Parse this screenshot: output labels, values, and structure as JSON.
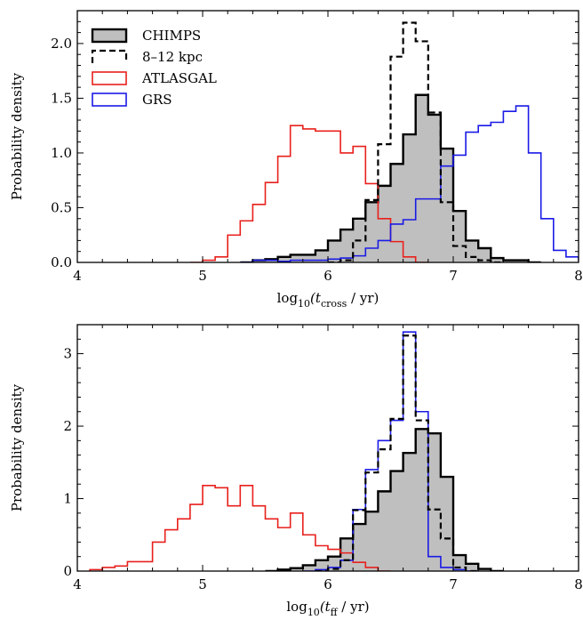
{
  "colors": {
    "chimps": "#000000",
    "chimps_fill": "#bfbfbf",
    "kpc": "#000000",
    "atlasgal": "#e8201c",
    "grs": "#1a1ae6"
  },
  "legend": {
    "placement": "top-left",
    "entries": [
      {
        "key": "chimps",
        "label": "CHIMPS",
        "style": "filled"
      },
      {
        "key": "kpc",
        "label": "8–12 kpc",
        "style": "dashed"
      },
      {
        "key": "atlasgal",
        "label": "ATLASGAL",
        "style": "red-outline"
      },
      {
        "key": "grs",
        "label": "GRS",
        "style": "blue-outline"
      }
    ]
  },
  "chart_data": [
    {
      "type": "histogram",
      "xlabel_pre": "log",
      "xlabel_sub": "10",
      "xlabel_open": "(t",
      "xlabel_tsub": "cross",
      "xlabel_close": " / yr)",
      "ylabel": "Probability density",
      "xlim": [
        4,
        8
      ],
      "ylim": [
        0,
        2.3
      ],
      "xticks": [
        4,
        5,
        6,
        7,
        8
      ],
      "yticks": [
        0.0,
        0.5,
        1.0,
        1.5,
        2.0
      ],
      "ytick_labels": [
        "0.0",
        "0.5",
        "1.0",
        "1.5",
        "2.0"
      ],
      "series": [
        {
          "key": "atlasgal",
          "name": "ATLASGAL",
          "style": "red",
          "bin_width": 0.1,
          "x0": 4.9,
          "values": [
            0.0,
            0.02,
            0.05,
            0.25,
            0.38,
            0.53,
            0.73,
            0.97,
            1.25,
            1.22,
            1.2,
            1.2,
            1.0,
            1.06,
            0.72,
            0.4,
            0.19,
            0.05,
            0.0
          ]
        },
        {
          "key": "chimps",
          "name": "CHIMPS",
          "style": "filled",
          "bin_width": 0.1,
          "x0": 5.3,
          "values": [
            0.0,
            0.02,
            0.03,
            0.05,
            0.07,
            0.07,
            0.11,
            0.2,
            0.3,
            0.4,
            0.55,
            0.7,
            0.9,
            1.17,
            1.53,
            1.35,
            1.04,
            0.47,
            0.2,
            0.13,
            0.04,
            0.02,
            0.02,
            0.0
          ]
        },
        {
          "key": "kpc",
          "name": "8–12 kpc",
          "style": "dashed",
          "bin_width": 0.1,
          "x0": 6.0,
          "values": [
            0.0,
            0.02,
            0.2,
            0.57,
            1.08,
            1.88,
            2.19,
            2.02,
            1.37,
            0.55,
            0.15,
            0.05,
            0.02,
            0.0
          ]
        },
        {
          "key": "grs",
          "name": "GRS",
          "style": "blue",
          "bin_width": 0.1,
          "x0": 5.3,
          "values": [
            0.0,
            0.02,
            0.02,
            0.01,
            0.02,
            0.02,
            0.02,
            0.03,
            0.04,
            0.06,
            0.13,
            0.2,
            0.35,
            0.39,
            0.58,
            0.58,
            0.88,
            0.98,
            1.19,
            1.25,
            1.28,
            1.38,
            1.43,
            1.0,
            0.4,
            0.11,
            0.05,
            0.02,
            0.02,
            0.0
          ]
        }
      ]
    },
    {
      "type": "histogram",
      "xlabel_pre": "log",
      "xlabel_sub": "10",
      "xlabel_open": "(t",
      "xlabel_tsub": "ff",
      "xlabel_close": " / yr)",
      "ylabel": "Probability density",
      "xlim": [
        4,
        8
      ],
      "ylim": [
        0,
        3.4
      ],
      "xticks": [
        4,
        5,
        6,
        7,
        8
      ],
      "yticks": [
        0,
        1,
        2,
        3
      ],
      "ytick_labels": [
        "0",
        "1",
        "2",
        "3"
      ],
      "series": [
        {
          "key": "atlasgal",
          "name": "ATLASGAL",
          "style": "red",
          "bin_width": 0.1,
          "x0": 4.1,
          "values": [
            0.02,
            0.05,
            0.07,
            0.13,
            0.13,
            0.4,
            0.57,
            0.72,
            0.92,
            1.18,
            1.15,
            0.9,
            1.18,
            0.9,
            0.72,
            0.6,
            0.8,
            0.5,
            0.35,
            0.3,
            0.25,
            0.12,
            0.05,
            0.0
          ]
        },
        {
          "key": "chimps",
          "name": "CHIMPS",
          "style": "filled",
          "bin_width": 0.1,
          "x0": 5.5,
          "values": [
            0.0,
            0.02,
            0.04,
            0.08,
            0.15,
            0.2,
            0.45,
            0.65,
            0.82,
            1.1,
            1.38,
            1.63,
            1.96,
            1.9,
            1.3,
            0.22,
            0.1,
            0.03,
            0.0
          ]
        },
        {
          "key": "kpc",
          "name": "8–12 kpc",
          "style": "dashed",
          "bin_width": 0.1,
          "x0": 5.9,
          "values": [
            0.0,
            0.03,
            0.15,
            0.84,
            1.36,
            1.68,
            2.1,
            3.25,
            2.08,
            0.85,
            0.45,
            0.05,
            0.0
          ]
        },
        {
          "key": "grs",
          "name": "GRS",
          "style": "blue",
          "bin_width": 0.1,
          "x0": 5.8,
          "values": [
            0.0,
            0.02,
            0.05,
            0.15,
            0.85,
            1.4,
            1.8,
            2.08,
            3.3,
            2.2,
            0.2,
            0.05,
            0.02,
            0.0
          ]
        }
      ]
    }
  ]
}
